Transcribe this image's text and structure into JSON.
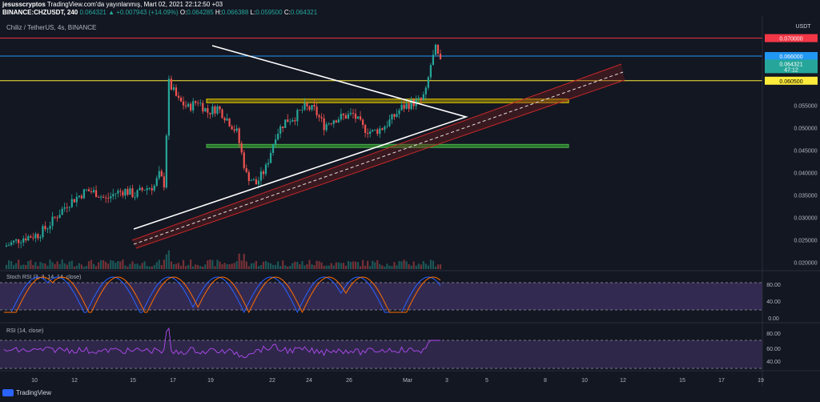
{
  "header": {
    "user": "jesusscryptos",
    "published": "TradingView.com'da yayınlanmış, Mart 02, 2021 22:12:50 +03",
    "symbol": "BINANCE:CHZUSDT, 240",
    "last": "0.064321",
    "change": "▲ +0.007943 (+14.09%)",
    "o_label": "O:",
    "o": "0.064285",
    "h_label": "H:",
    "h": "0.066388",
    "l_label": "L:",
    "l": "0.059500",
    "c_label": "C:",
    "c": "0.064321"
  },
  "pair_label": "Chiliz / TetherUS, 4s, BINANCE",
  "currency": "USDT",
  "price_tags": {
    "red": "0.070000",
    "blue": "0.066000",
    "current": "0.064321",
    "countdown": "47:12",
    "yellow": "0.060500"
  },
  "colors": {
    "background": "#131722",
    "up": "#26a69a",
    "down": "#ef5350",
    "resistance": "#f23645",
    "blue_level": "#2196f3",
    "yellow_level": "#ffeb3b",
    "zone_yellow": "#c8b400",
    "zone_green": "#33a02c",
    "rsi_purple": "#7e57c2",
    "stoch_k": "#2962ff",
    "stoch_d": "#ff6d00"
  },
  "indicators": {
    "stoch_label": "Stoch RSI (3, 3, 14, 14, close)",
    "stoch_ticks": [
      "80.00",
      "40.00",
      "0.00"
    ],
    "rsi_label": "RSI (14, close)",
    "rsi_ticks": [
      "80.00",
      "60.00",
      "40.00"
    ]
  },
  "brand": "TradingView",
  "chart_data": {
    "type": "candlestick",
    "title": "Chiliz / TetherUS, 4s, BINANCE",
    "y_ticks": [
      "0.055000",
      "0.050000",
      "0.045000",
      "0.040000",
      "0.035000",
      "0.030000",
      "0.025000",
      "0.020000"
    ],
    "x_ticks": [
      "10",
      "12",
      "15",
      "17",
      "19",
      "22",
      "24",
      "26",
      "Mar",
      "3",
      "5",
      "8",
      "10",
      "12",
      "15",
      "17",
      "19"
    ],
    "ylim": [
      0.0185,
      0.0735
    ],
    "horizontal_levels": [
      0.07,
      0.066,
      0.0605
    ],
    "zones": [
      {
        "color": "yellow",
        "from": 0.0556,
        "to": 0.0564
      },
      {
        "color": "green",
        "from": 0.0456,
        "to": 0.0463
      }
    ],
    "price_path": [
      [
        0,
        0.0235
      ],
      [
        8,
        0.0255
      ],
      [
        14,
        0.0262
      ],
      [
        18,
        0.028
      ],
      [
        22,
        0.0305
      ],
      [
        26,
        0.033
      ],
      [
        30,
        0.0345
      ],
      [
        34,
        0.036
      ],
      [
        38,
        0.0355
      ],
      [
        42,
        0.034
      ],
      [
        46,
        0.0355
      ],
      [
        50,
        0.036
      ],
      [
        54,
        0.035
      ],
      [
        58,
        0.0365
      ],
      [
        62,
        0.037
      ],
      [
        64,
        0.0395
      ],
      [
        66,
        0.0375
      ],
      [
        68,
        0.06
      ],
      [
        72,
        0.056
      ],
      [
        76,
        0.0545
      ],
      [
        80,
        0.056
      ],
      [
        84,
        0.0535
      ],
      [
        88,
        0.0545
      ],
      [
        92,
        0.052
      ],
      [
        96,
        0.049
      ],
      [
        100,
        0.0395
      ],
      [
        104,
        0.0375
      ],
      [
        108,
        0.041
      ],
      [
        112,
        0.0485
      ],
      [
        116,
        0.0515
      ],
      [
        120,
        0.0525
      ],
      [
        124,
        0.0545
      ],
      [
        128,
        0.054
      ],
      [
        132,
        0.0505
      ],
      [
        136,
        0.052
      ],
      [
        140,
        0.0525
      ],
      [
        144,
        0.053
      ],
      [
        148,
        0.05
      ],
      [
        152,
        0.049
      ],
      [
        156,
        0.05
      ],
      [
        160,
        0.052
      ],
      [
        164,
        0.0545
      ],
      [
        168,
        0.0555
      ],
      [
        172,
        0.056
      ],
      [
        174,
        0.058
      ],
      [
        176,
        0.064
      ],
      [
        178,
        0.0675
      ],
      [
        180,
        0.0643
      ]
    ]
  }
}
